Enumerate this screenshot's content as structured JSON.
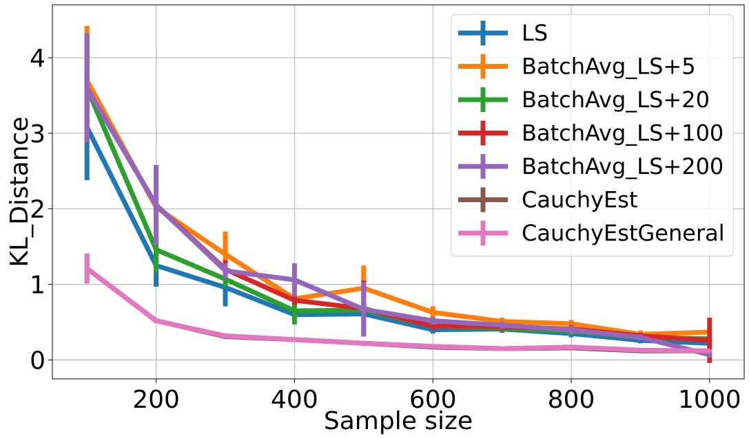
{
  "chart_data": {
    "type": "line",
    "xlabel": "Sample size",
    "ylabel": "KL_Distance",
    "xlim": [
      50,
      1050
    ],
    "ylim": [
      -0.25,
      4.7
    ],
    "x_ticks": [
      200,
      400,
      600,
      800,
      1000
    ],
    "y_ticks": [
      0,
      1,
      2,
      3,
      4
    ],
    "grid": true,
    "legend_position": "top-right",
    "x": [
      100,
      200,
      300,
      400,
      500,
      600,
      700,
      800,
      900,
      1000
    ],
    "series": [
      {
        "name": "LS",
        "color": "#1f77b4",
        "values": [
          3.08,
          1.25,
          0.96,
          0.6,
          0.61,
          0.4,
          0.41,
          0.35,
          0.26,
          0.22
        ],
        "errors": [
          0.7,
          0.28,
          0.25,
          0.05,
          0.06,
          0.05,
          0.05,
          0.05,
          0.04,
          0.04
        ]
      },
      {
        "name": "BatchAvg_LS+5",
        "color": "#ff7f0e",
        "values": [
          3.7,
          2.02,
          1.4,
          0.81,
          0.95,
          0.63,
          0.51,
          0.48,
          0.34,
          0.37
        ],
        "errors": [
          0.72,
          0.1,
          0.3,
          0.06,
          0.3,
          0.08,
          0.05,
          0.05,
          0.05,
          0.05
        ]
      },
      {
        "name": "BatchAvg_LS+20",
        "color": "#2ca02c",
        "values": [
          3.6,
          1.46,
          1.07,
          0.65,
          0.66,
          0.45,
          0.42,
          0.38,
          0.3,
          0.28
        ],
        "errors": [
          0.72,
          0.3,
          0.1,
          0.18,
          0.05,
          0.05,
          0.05,
          0.05,
          0.04,
          0.04
        ]
      },
      {
        "name": "BatchAvg_LS+100",
        "color": "#d62728",
        "values": [
          3.6,
          2.05,
          1.2,
          0.79,
          0.68,
          0.45,
          0.44,
          0.41,
          0.32,
          0.26
        ],
        "errors": [
          0.72,
          0.53,
          0.12,
          0.06,
          0.37,
          0.05,
          0.05,
          0.05,
          0.04,
          0.3
        ]
      },
      {
        "name": "BatchAvg_LS+200",
        "color": "#9467bd",
        "values": [
          3.6,
          2.05,
          1.18,
          1.06,
          0.67,
          0.52,
          0.46,
          0.4,
          0.3,
          0.07
        ],
        "errors": [
          0.72,
          0.53,
          0.1,
          0.22,
          0.36,
          0.05,
          0.05,
          0.05,
          0.04,
          0.04
        ]
      },
      {
        "name": "CauchyEst",
        "color": "#8c564b",
        "values": [
          1.21,
          0.52,
          0.31,
          0.27,
          0.22,
          0.17,
          0.15,
          0.16,
          0.12,
          0.12
        ],
        "errors": [
          0.2,
          0.03,
          0.03,
          0.03,
          0.03,
          0.02,
          0.02,
          0.02,
          0.02,
          0.02
        ]
      },
      {
        "name": "CauchyEstGeneral",
        "color": "#e377c2",
        "values": [
          1.21,
          0.52,
          0.32,
          0.27,
          0.22,
          0.18,
          0.15,
          0.17,
          0.13,
          0.12
        ],
        "errors": [
          0.2,
          0.03,
          0.03,
          0.03,
          0.03,
          0.02,
          0.02,
          0.02,
          0.02,
          0.02
        ]
      }
    ]
  }
}
